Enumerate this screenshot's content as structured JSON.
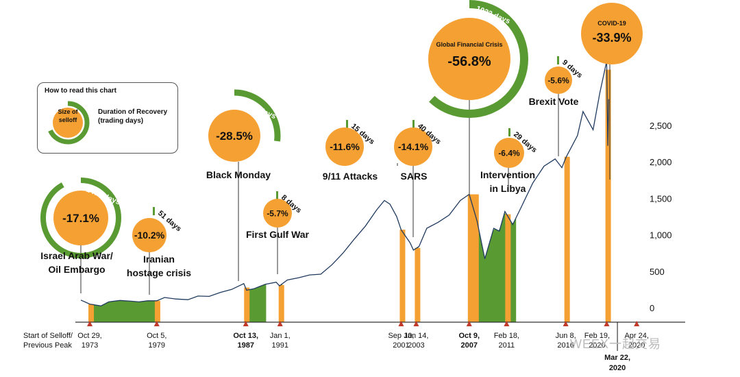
{
  "legend": {
    "title": "How to read this chart",
    "size_label": "Size of selloff",
    "duration_label": "Duration of Recovery (trading days)"
  },
  "colors": {
    "orange": "#f5a033",
    "green": "#5a9a32",
    "line": "#1f3a5f",
    "light_bar": "#b9c98a"
  },
  "watermark": "WEEX一起交易",
  "chart_data": {
    "type": "line",
    "title": "",
    "xlabel": "Start of Selloff/ Previous Peak",
    "ylabel": "",
    "ylim": [
      0,
      3400
    ],
    "yticks": [
      0,
      500,
      1000,
      1500,
      2000,
      2500
    ],
    "x_tick_labels": [
      {
        "label": "Oct 29, 1973",
        "bold": false
      },
      {
        "label": "Oct 5, 1979",
        "bold": false
      },
      {
        "label": "Oct 13, 1987",
        "bold": true
      },
      {
        "label": "Jan 1, 1991",
        "bold": false
      },
      {
        "label": "Sep 10, 2001",
        "bold": false
      },
      {
        "label": "Jan 14, 2003",
        "bold": false
      },
      {
        "label": "Oct 9, 2007",
        "bold": true
      },
      {
        "label": "Feb 18, 2011",
        "bold": false
      },
      {
        "label": "Jun 8, 2016",
        "bold": false
      },
      {
        "label": "Feb 19, 2020",
        "bold": false
      },
      {
        "label": "Apr 24, 2020",
        "bold": false
      }
    ],
    "trough_label": "Mar 22, 2020",
    "series": [
      {
        "x": [
          1973.0,
          1973.8,
          1974.8,
          1975.5,
          1976.5,
          1977.5,
          1978.2,
          1979.0,
          1979.8,
          1980.5,
          1981.5,
          1982.6,
          1983.5,
          1984.5,
          1985.5,
          1986.5,
          1987.6,
          1987.85,
          1988.5,
          1989.5,
          1990.5,
          1990.8,
          1991.5,
          1992.5,
          1993.5,
          1994.5,
          1995.5,
          1996.5,
          1997.5,
          1998.5,
          1999.5,
          2000.2,
          2000.7,
          2001.3,
          2001.7,
          2002.5,
          2002.8,
          2003.3,
          2004.0,
          2005.0,
          2006.0,
          2007.0,
          2007.8,
          2008.5,
          2009.2,
          2010.0,
          2010.5,
          2011.0,
          2011.7,
          2012.5,
          2013.5,
          2014.5,
          2015.5,
          2016.1,
          2016.5,
          2017.5,
          2018.0,
          2018.9,
          2019.5,
          2020.12,
          2020.22,
          2020.3
        ],
        "y": [
          115,
          60,
          35,
          90,
          110,
          100,
          90,
          105,
          105,
          150,
          130,
          120,
          170,
          165,
          220,
          260,
          340,
          250,
          270,
          330,
          360,
          310,
          390,
          420,
          460,
          470,
          600,
          760,
          950,
          1130,
          1350,
          1480,
          1430,
          1260,
          1080,
          900,
          800,
          850,
          1100,
          1180,
          1280,
          1480,
          1565,
          1200,
          680,
          1100,
          1060,
          1330,
          1150,
          1400,
          1720,
          1950,
          2050,
          1930,
          2080,
          2370,
          2700,
          2450,
          2950,
          3390,
          2230,
          2870
        ],
        "line_end_x": 2020.22
      }
    ],
    "events": [
      {
        "name": "Israel Arab War/ Oil Embargo",
        "drop": "-17.1%",
        "recovery_days": "1475 days",
        "start": 1973.8,
        "end": 1979.8
      },
      {
        "name": "Iranian hostage crisis",
        "drop": "-10.2%",
        "recovery_days": "51 days",
        "start": 1979.75,
        "end": 1979.95
      },
      {
        "name": "Black Monday",
        "drop": "-28.5%",
        "recovery_days": "398 days",
        "start": 1987.75,
        "end": 1989.6
      },
      {
        "name": "First Gulf War",
        "drop": "-5.7%",
        "recovery_days": "8 days",
        "start": 1990.85,
        "end": 1991.05
      },
      {
        "name": "9/11 Attacks",
        "drop": "-11.6%",
        "recovery_days": "15 days",
        "start": 2001.7,
        "end": 2001.78
      },
      {
        "name": "SARS",
        "drop": "-14.1%",
        "recovery_days": "40 days",
        "start": 2003.05,
        "end": 2003.25
      },
      {
        "name": "Global Financial Crisis",
        "drop": "-56.8%",
        "recovery_days": "1022 days",
        "start": 2007.8,
        "end": 2012.0
      },
      {
        "name": "Intervention in Libya",
        "drop": "-6.4%",
        "recovery_days": "29 days",
        "start": 2011.15,
        "end": 2011.3
      },
      {
        "name": "Brexit Vote",
        "drop": "-5.6%",
        "recovery_days": "9 days",
        "start": 2016.45,
        "end": 2016.5
      },
      {
        "name": "COVID-19",
        "drop": "-33.9%",
        "recovery_days": "",
        "start": 2020.13,
        "end": 2020.22
      }
    ]
  }
}
